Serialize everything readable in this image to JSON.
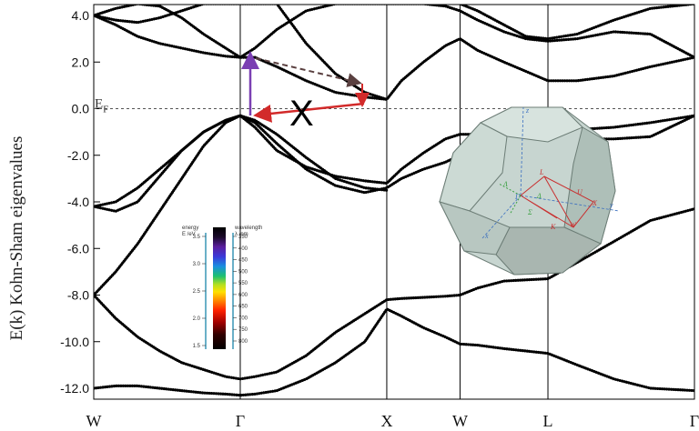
{
  "chart_data": {
    "type": "line",
    "title": "",
    "xlabel": "",
    "ylabel": "E(k) Kohn-Sham eigenvalues",
    "ylim": [
      -13.2,
      4.5
    ],
    "y_ticks": [
      "4.0",
      "2.0",
      "0.0",
      "-2.0",
      "-4.0",
      "-6.0",
      "-8.0",
      "-10.0",
      "-12.0"
    ],
    "y_tick_values": [
      4,
      2,
      0,
      -2,
      -4,
      -6,
      -8,
      -10,
      -12
    ],
    "x_points": [
      "W",
      "Γ",
      "X",
      "W",
      "L",
      "Γ"
    ],
    "x_point_positions": [
      0,
      1,
      2,
      2.5,
      3.1,
      4.1
    ],
    "fermi_level_label": "E",
    "fermi_level_subscript": "F",
    "fermi_level": 0,
    "series": [
      {
        "x": [
          0,
          0.15,
          0.3,
          0.45,
          0.6,
          0.75,
          0.9,
          1.0,
          1.1,
          1.25,
          1.45,
          1.65,
          1.85,
          2.0,
          2.1,
          2.25,
          2.4,
          2.5,
          2.62,
          2.8,
          2.95,
          3.1,
          3.3,
          3.55,
          3.8,
          4.1
        ],
        "y": [
          -12.0,
          -11.9,
          -11.9,
          -12.0,
          -12.1,
          -12.2,
          -12.25,
          -12.3,
          -12.25,
          -12.1,
          -11.6,
          -10.9,
          -10.0,
          -8.6,
          -8.9,
          -9.4,
          -9.8,
          -10.1,
          -10.15,
          -10.3,
          -10.4,
          -10.5,
          -11.0,
          -11.6,
          -12.0,
          -12.1
        ]
      },
      {
        "x": [
          0,
          0.15,
          0.3,
          0.45,
          0.6,
          0.75,
          0.9,
          1.0,
          1.1,
          1.25,
          1.45,
          1.65,
          1.85,
          2.0,
          2.1,
          2.25,
          2.4,
          2.5,
          2.62,
          2.8,
          2.95,
          3.1,
          3.3,
          3.55,
          3.8,
          4.1
        ],
        "y": [
          -8.0,
          -9.0,
          -9.8,
          -10.4,
          -10.9,
          -11.2,
          -11.5,
          -11.6,
          -11.5,
          -11.3,
          -10.6,
          -9.6,
          -8.8,
          -8.2,
          -8.15,
          -8.1,
          -8.05,
          -8.0,
          -7.7,
          -7.4,
          -7.35,
          -7.3,
          -6.6,
          -5.7,
          -4.8,
          -4.3
        ]
      },
      {
        "x": [
          0,
          0.15,
          0.3,
          0.45,
          0.6,
          0.75,
          0.9,
          1.0,
          1.1,
          1.25,
          1.45,
          1.65,
          1.85,
          2.0,
          2.1,
          2.25,
          2.4,
          2.5,
          2.62,
          2.8,
          2.95,
          3.1,
          3.3,
          3.55,
          3.8,
          4.1
        ],
        "y": [
          -8.0,
          -7.0,
          -5.8,
          -4.4,
          -3.0,
          -1.6,
          -0.6,
          -0.3,
          -0.6,
          -1.5,
          -2.6,
          -3.3,
          -3.6,
          -3.4,
          -3.0,
          -2.6,
          -2.3,
          -2.0,
          -1.6,
          -1.2,
          -1.0,
          -0.9,
          -0.9,
          -0.8,
          -0.6,
          -0.3
        ]
      },
      {
        "x": [
          0,
          0.15,
          0.3,
          0.45,
          0.6,
          0.75,
          0.9,
          1.0,
          1.1,
          1.25,
          1.45,
          1.65,
          1.85,
          2.0
        ],
        "y": [
          -4.2,
          -4.4,
          -4.0,
          -2.9,
          -1.8,
          -1.0,
          -0.5,
          -0.3,
          -0.5,
          -1.1,
          -2.1,
          -3.0,
          -3.4,
          -3.5
        ]
      },
      {
        "x": [
          0,
          0.15,
          0.3,
          0.45,
          0.6,
          0.75,
          0.9,
          1.0,
          1.1,
          1.25,
          1.45,
          1.65,
          1.85,
          2.0,
          2.1,
          2.25,
          2.4,
          2.5,
          2.62,
          2.8,
          2.95,
          3.1,
          3.3,
          3.55,
          3.8,
          4.1
        ],
        "y": [
          -4.2,
          -4.0,
          -3.4,
          -2.6,
          -1.8,
          -1.0,
          -0.5,
          -0.3,
          -0.8,
          -1.8,
          -2.5,
          -2.9,
          -3.1,
          -3.2,
          -2.6,
          -1.9,
          -1.3,
          -1.1,
          -1.1,
          -1.2,
          -1.3,
          -1.3,
          -1.3,
          -1.3,
          -1.2,
          -0.3
        ]
      },
      {
        "x": [
          0,
          0.15,
          0.3,
          0.45,
          0.6,
          0.75,
          0.9,
          1.0,
          1.1,
          1.25,
          1.45,
          1.65,
          1.85,
          2.0,
          2.1,
          2.25,
          2.4,
          2.5,
          2.62,
          2.8,
          2.95,
          3.1,
          3.3,
          3.55,
          3.8,
          4.1
        ],
        "y": [
          4.0,
          3.6,
          3.1,
          2.8,
          2.6,
          2.4,
          2.25,
          2.2,
          2.2,
          1.8,
          1.2,
          0.7,
          0.5,
          0.4,
          1.2,
          2.0,
          2.7,
          3.0,
          2.5,
          2.0,
          1.6,
          1.2,
          1.2,
          1.4,
          1.8,
          2.2
        ]
      },
      {
        "x": [
          0,
          0.15,
          0.3,
          0.45,
          0.6,
          0.75,
          0.9,
          1.0,
          1.1,
          1.25,
          1.45,
          1.65,
          1.85,
          2.0,
          2.1,
          2.25,
          2.4,
          2.5,
          2.62,
          2.8,
          2.95,
          3.1,
          3.3,
          3.55,
          3.8,
          4.1
        ],
        "y": [
          4.0,
          4.3,
          4.5,
          4.4,
          3.9,
          3.2,
          2.6,
          2.2,
          2.6,
          3.4,
          4.2,
          4.5,
          4.5,
          4.5,
          4.5,
          4.5,
          4.4,
          4.2,
          3.8,
          3.3,
          3.0,
          2.9,
          3.0,
          3.3,
          3.2,
          2.2
        ]
      },
      {
        "x": [
          0,
          0.15,
          0.3,
          0.45,
          0.6,
          0.75,
          0.9,
          1.0,
          1.1,
          1.25,
          1.45,
          1.65,
          1.85,
          2.0
        ],
        "y": [
          4.0,
          3.8,
          3.7,
          3.9,
          4.2,
          4.5,
          4.5,
          4.5,
          4.5,
          4.5,
          2.8,
          1.5,
          0.7,
          0.4
        ]
      },
      {
        "x": [
          2.5,
          2.62,
          2.8,
          2.95,
          3.1,
          3.3,
          3.55,
          3.8,
          4.1
        ],
        "y": [
          4.5,
          4.2,
          3.6,
          3.1,
          3.0,
          3.2,
          3.8,
          4.3,
          4.5
        ]
      }
    ]
  },
  "transitions": {
    "direct_label": "",
    "indirect_mark": "X",
    "colors": {
      "direct": "#7b3fb3",
      "indirect": "#d22a2a",
      "dashed": "#5a4040"
    }
  },
  "colorbar": {
    "energy_label": "energy",
    "energy_unit": "E /eV",
    "energy_ticks": [
      "3.5",
      "3.0",
      "2.5",
      "2.0",
      "1.5"
    ],
    "energy_values": [
      3.5,
      3.0,
      2.5,
      2.0,
      1.5
    ],
    "wavelength_label": "wavelength",
    "wavelength_unit": "λ /nm",
    "wavelength_ticks": [
      "350",
      "400",
      "450",
      "500",
      "550",
      "600",
      "650",
      "700",
      "750",
      "800"
    ],
    "wavelength_values": [
      350,
      400,
      450,
      500,
      550,
      600,
      650,
      700,
      750,
      800
    ]
  },
  "brillouin_zone": {
    "points": [
      "L",
      "Γ",
      "X",
      "U",
      "K",
      "W",
      "Λ",
      "Δ",
      "Σ",
      "x",
      "y",
      "z"
    ],
    "face_color": "#c7d5d0",
    "edge_color": "#6c7d76"
  }
}
